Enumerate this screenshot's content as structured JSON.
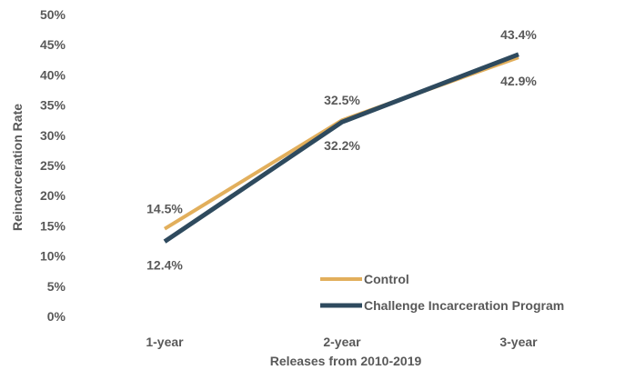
{
  "chart_data": {
    "type": "line",
    "categories": [
      "1-year",
      "2-year",
      "3-year"
    ],
    "xlabel": "Releases from 2010-2019",
    "ylabel": "Reincarceration Rate",
    "ylim": [
      0,
      50
    ],
    "yticks": [
      "0%",
      "5%",
      "10%",
      "15%",
      "20%",
      "25%",
      "30%",
      "35%",
      "40%",
      "45%",
      "50%"
    ],
    "grid": false,
    "legend_position": "bottom-right",
    "series": [
      {
        "name": "Control",
        "values": [
          14.5,
          32.5,
          42.9
        ],
        "labels": [
          "14.5%",
          "32.5%",
          "42.9%"
        ],
        "color": "#E2AF5C"
      },
      {
        "name": "Challenge Incarceration Program",
        "values": [
          12.4,
          32.2,
          43.4
        ],
        "labels": [
          "12.4%",
          "32.2%",
          "43.4%"
        ],
        "color": "#2E4A5E"
      }
    ]
  }
}
